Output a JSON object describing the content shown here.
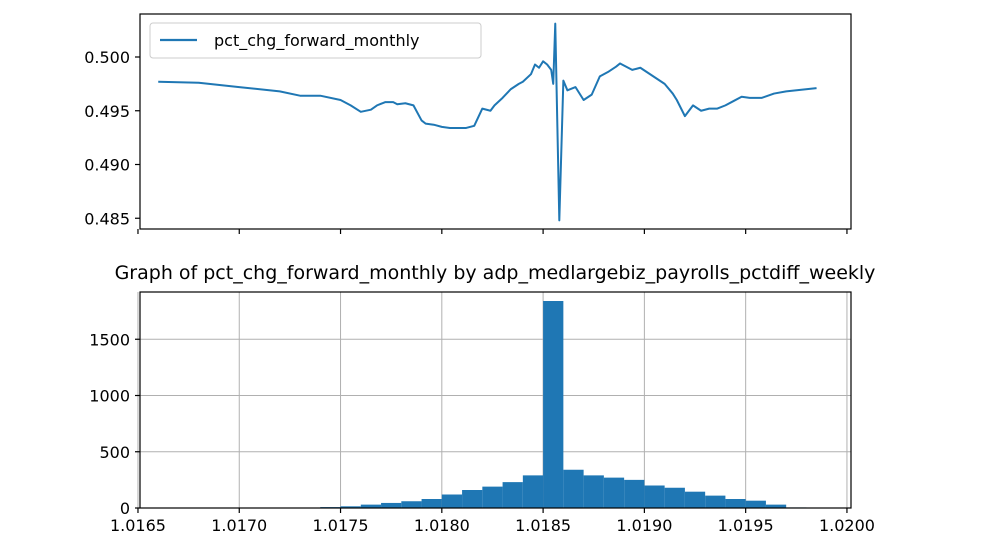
{
  "chart_data": [
    {
      "type": "line",
      "title": "",
      "xlabel": "",
      "ylabel": "",
      "legend": {
        "entries": [
          "pct_chg_forward_monthly"
        ],
        "position": "top-left"
      },
      "series": [
        {
          "name": "pct_chg_forward_monthly",
          "color": "#1f77b4",
          "x": [
            1.0166,
            1.0168,
            1.017,
            1.0172,
            1.0173,
            1.0174,
            1.0175,
            1.01755,
            1.0176,
            1.01765,
            1.01768,
            1.01772,
            1.01776,
            1.01778,
            1.01782,
            1.01786,
            1.0179,
            1.01792,
            1.01796,
            1.018,
            1.01804,
            1.01808,
            1.01812,
            1.01816,
            1.0182,
            1.01824,
            1.01826,
            1.0183,
            1.01834,
            1.01838,
            1.0184,
            1.01844,
            1.01846,
            1.01848,
            1.0185,
            1.01852,
            1.01854,
            1.01855,
            1.01856,
            1.01858,
            1.0186,
            1.01862,
            1.01866,
            1.0187,
            1.01874,
            1.01878,
            1.01882,
            1.01886,
            1.01888,
            1.0189,
            1.01894,
            1.01898,
            1.01902,
            1.01906,
            1.0191,
            1.01914,
            1.01916,
            1.0192,
            1.01924,
            1.01928,
            1.01932,
            1.01936,
            1.0194,
            1.01944,
            1.01948,
            1.01952,
            1.01958,
            1.01964,
            1.0197,
            1.01985
          ],
          "values": [
            0.4977,
            0.4976,
            0.4972,
            0.4968,
            0.4964,
            0.4964,
            0.496,
            0.4955,
            0.4949,
            0.4951,
            0.4955,
            0.4958,
            0.4958,
            0.4956,
            0.4957,
            0.4955,
            0.4941,
            0.4938,
            0.4937,
            0.4935,
            0.4934,
            0.4934,
            0.4934,
            0.4936,
            0.4952,
            0.495,
            0.4955,
            0.4962,
            0.497,
            0.4975,
            0.4977,
            0.4984,
            0.4993,
            0.499,
            0.4996,
            0.4993,
            0.4988,
            0.4975,
            0.5031,
            0.4848,
            0.4978,
            0.4969,
            0.4972,
            0.496,
            0.4965,
            0.4982,
            0.4986,
            0.4991,
            0.4994,
            0.4992,
            0.4988,
            0.499,
            0.4985,
            0.498,
            0.4975,
            0.4966,
            0.496,
            0.4945,
            0.4955,
            0.495,
            0.4952,
            0.4952,
            0.4955,
            0.4959,
            0.4963,
            0.4962,
            0.4962,
            0.4966,
            0.4968,
            0.4971
          ]
        }
      ],
      "xlim": [
        1.01651,
        1.02002
      ],
      "ylim": [
        0.484,
        0.504
      ],
      "yticks": [
        "0.485",
        "0.490",
        "0.495",
        "0.500"
      ],
      "x_tick_values": [
        1.0165,
        1.017,
        1.0175,
        1.018,
        1.0185,
        1.019,
        1.0195,
        1.02
      ],
      "x_tick_labels_shown": false,
      "grid": false
    },
    {
      "type": "bar",
      "title": "Graph of pct_chg_forward_monthly by adp_medlargebiz_payrolls_pctdiff_weekly",
      "xlabel": "",
      "ylabel": "",
      "color": "#1f77b4",
      "bins": [
        1.01745,
        1.01755,
        1.01765,
        1.01775,
        1.01785,
        1.01795,
        1.01805,
        1.01815,
        1.01825,
        1.01835,
        1.01845,
        1.01855,
        1.01865,
        1.01875,
        1.01885,
        1.01895,
        1.01905,
        1.01915,
        1.01925,
        1.01935,
        1.01945,
        1.01955,
        1.01965,
        1.01975
      ],
      "values": [
        8,
        15,
        30,
        45,
        60,
        80,
        120,
        160,
        190,
        230,
        290,
        1840,
        340,
        290,
        270,
        250,
        200,
        180,
        145,
        110,
        80,
        65,
        30,
        5
      ],
      "bin_width": 0.0001,
      "xlim": [
        1.01651,
        1.02002
      ],
      "ylim": [
        0,
        1920
      ],
      "xticks": [
        "1.0165",
        "1.0170",
        "1.0175",
        "1.0180",
        "1.0185",
        "1.0190",
        "1.0195",
        "1.0200"
      ],
      "x_tick_values": [
        1.0165,
        1.017,
        1.0175,
        1.018,
        1.0185,
        1.019,
        1.0195,
        1.02
      ],
      "yticks": [
        "0",
        "500",
        "1000",
        "1500"
      ],
      "y_tick_values": [
        0,
        500,
        1000,
        1500
      ],
      "grid": true
    }
  ]
}
